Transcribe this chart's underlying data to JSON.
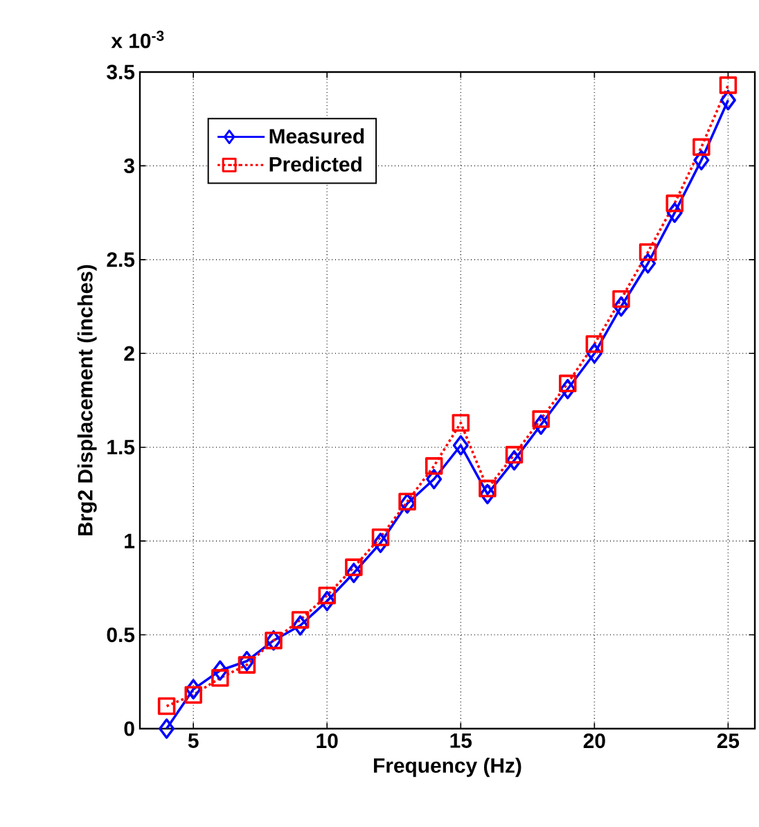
{
  "chart_data": {
    "type": "line",
    "xlabel": "Frequency (Hz)",
    "ylabel": "Brg2 Displacement (inches)",
    "annotations": [
      "x 10$^{-3}$"
    ],
    "x": [
      4,
      5,
      6,
      7,
      8,
      9,
      10,
      11,
      12,
      13,
      14,
      15,
      16,
      17,
      18,
      19,
      20,
      21,
      22,
      23,
      24,
      25
    ],
    "series": [
      {
        "name": "Measured",
        "color": "#0000ff",
        "marker": "diamond",
        "line_style": "solid",
        "values": [
          0,
          0.21,
          0.31,
          0.36,
          0.47,
          0.55,
          0.68,
          0.83,
          0.99,
          1.2,
          1.33,
          1.51,
          1.25,
          1.43,
          1.62,
          1.81,
          2.0,
          2.25,
          2.48,
          2.75,
          3.03,
          3.35
        ]
      },
      {
        "name": "Predicted",
        "color": "#ff0000",
        "marker": "square",
        "line_style": "dotted",
        "values": [
          0.12,
          0.18,
          0.27,
          0.34,
          0.47,
          0.58,
          0.71,
          0.86,
          1.02,
          1.21,
          1.4,
          1.63,
          1.28,
          1.46,
          1.65,
          1.84,
          2.05,
          2.29,
          2.54,
          2.8,
          3.1,
          3.43
        ]
      }
    ],
    "xlim": [
      3,
      26
    ],
    "ylim": [
      0,
      3.5
    ],
    "xticks": [
      5,
      10,
      15,
      20,
      25
    ],
    "yticks": [
      0,
      0.5,
      1,
      1.5,
      2,
      2.5,
      3,
      3.5
    ],
    "grid": true,
    "legend": "top left"
  }
}
